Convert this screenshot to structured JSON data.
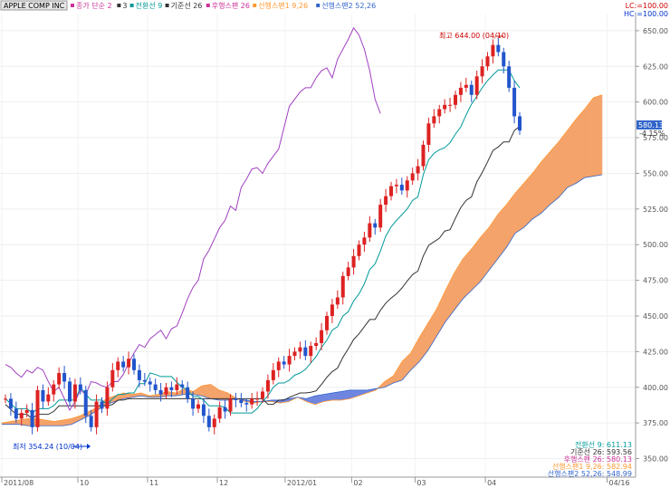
{
  "header": {
    "symbol": "APPLE COMP INC",
    "legend": [
      {
        "text": "종가 단순 2",
        "color": "#cc3399"
      },
      {
        "text": "3",
        "color": "#333333"
      },
      {
        "text": "전환선 9",
        "color": "#009999"
      },
      {
        "text": "기준선 26",
        "color": "#333333"
      },
      {
        "text": "후행스팬 26",
        "color": "#cc3399"
      },
      {
        "text": "선행스팬1 9,26",
        "color": "#ff9933"
      },
      {
        "text": "선행스팬2 52,26",
        "color": "#3366cc"
      }
    ],
    "lc": "LC:=100.00",
    "hc": "HC:=100.00"
  },
  "chart_data": {
    "type": "candlestick",
    "ylim": [
      337,
      662
    ],
    "yticks": [
      "650.00",
      "625.00",
      "600.00",
      "575.00",
      "550.00",
      "525.00",
      "500.00",
      "475.00",
      "450.00",
      "425.00",
      "400.00",
      "375.00",
      "350.00"
    ],
    "xlabels": [
      "2011/08",
      "10",
      "11",
      "12",
      "2012/01",
      "02",
      "03",
      "04",
      "04/16"
    ],
    "annotations": {
      "high": "최고 644.00 (04/10)",
      "low": "최저 354.24 (10/04)"
    },
    "current": {
      "price": "580.13",
      "change": "-4.15%"
    },
    "indicators": [
      {
        "label": "전환선 9: 611.13",
        "color": "#009999"
      },
      {
        "label": "기준선 26: 593.56",
        "color": "#333333"
      },
      {
        "label": "후행스팬 26: 580.13",
        "color": "#cc3399"
      },
      {
        "label": "선행스팬1 9,26: 582.94",
        "color": "#ff9933"
      },
      {
        "label": "선행스팬2 52,26: 548.99",
        "color": "#3366cc"
      }
    ],
    "series": [
      {
        "name": "close",
        "values": [
          392,
          385,
          378,
          382,
          384,
          372,
          398,
          390,
          395,
          402,
          410,
          404,
          390,
          402,
          398,
          380,
          372,
          390,
          385,
          400,
          412,
          418,
          414,
          420,
          412,
          405,
          404,
          402,
          398,
          395,
          400,
          398,
          402,
          400,
          392,
          385,
          388,
          380,
          372,
          378,
          386,
          383,
          392,
          391,
          389,
          388,
          392,
          392,
          397,
          405,
          412,
          418,
          416,
          422,
          425,
          428,
          422,
          429,
          431,
          440,
          450,
          458,
          463,
          478,
          484,
          492,
          500,
          505,
          515,
          512,
          528,
          534,
          541,
          542,
          538,
          545,
          550,
          555,
          570,
          585,
          590,
          595,
          598,
          598,
          605,
          610,
          612,
          605,
          618,
          625,
          632,
          640,
          635,
          625,
          610,
          590,
          580
        ]
      }
    ],
    "cloud": {
      "span1": [
        375,
        376,
        377,
        378,
        378,
        377,
        376,
        377,
        378,
        380,
        383,
        386,
        392,
        394,
        396,
        395,
        396,
        394,
        395,
        397,
        396,
        399,
        397,
        401,
        402,
        398,
        396,
        392,
        390,
        389,
        390,
        390,
        389,
        390,
        393,
        390,
        388,
        390,
        391,
        391,
        392,
        394,
        396,
        398,
        404,
        408,
        418,
        424,
        435,
        445,
        455,
        468,
        480,
        490,
        497,
        505,
        512,
        521,
        528,
        536,
        543,
        550,
        558,
        565,
        572,
        580,
        588,
        595,
        603,
        605
      ],
      "span2": [
        374,
        374,
        374,
        373,
        373,
        373,
        373,
        373,
        374,
        377,
        380,
        384,
        388,
        390,
        392,
        393,
        394,
        393,
        393,
        394,
        394,
        395,
        395,
        394,
        392,
        391,
        391,
        392,
        391,
        390,
        390,
        391,
        391,
        392,
        393,
        392,
        394,
        395,
        396,
        397,
        398,
        398,
        398,
        399,
        400,
        403,
        405,
        412,
        418,
        426,
        436,
        446,
        454,
        462,
        468,
        474,
        482,
        490,
        498,
        508,
        512,
        518,
        522,
        528,
        533,
        540,
        543,
        547,
        548,
        549
      ]
    }
  }
}
